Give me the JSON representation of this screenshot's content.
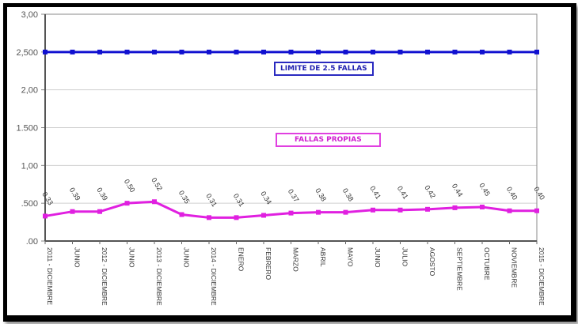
{
  "chart_data": {
    "type": "line",
    "title": "",
    "xlabel": "",
    "ylabel": "",
    "ylim": [
      0,
      3.0
    ],
    "y_ticks": [
      ".00",
      ".500",
      "1,00",
      "1.500",
      "2,00",
      "2,500",
      "3,00"
    ],
    "y_tick_values": [
      0,
      0.5,
      1.0,
      1.5,
      2.0,
      2.5,
      3.0
    ],
    "grid": true,
    "categories": [
      "2011 - DICIEMBRE",
      "JUNIO",
      "2012 - DICIEMBRE",
      "JUNIO",
      "2013 - DICIEMBRE",
      "JUNIO",
      "2014 - DICIEMBRE",
      "ENERO",
      "FEBRERO",
      "MARZO",
      "ABRIL",
      "MAYO",
      "JUNIO",
      "JULIO",
      "AGOSTO",
      "SEPTIEMBRE",
      "OCTUBRE",
      "NOVIEMBRE",
      "2015 - DICIEMBRE"
    ],
    "series": [
      {
        "name": "LIMITE DE 2.5 FALLAS",
        "color": "#1010d0",
        "values": [
          2.5,
          2.5,
          2.5,
          2.5,
          2.5,
          2.5,
          2.5,
          2.5,
          2.5,
          2.5,
          2.5,
          2.5,
          2.5,
          2.5,
          2.5,
          2.5,
          2.5,
          2.5,
          2.5
        ]
      },
      {
        "name": "FALLAS PROPIAS",
        "color": "#e020e0",
        "values": [
          0.33,
          0.39,
          0.39,
          0.5,
          0.52,
          0.35,
          0.31,
          0.31,
          0.34,
          0.37,
          0.38,
          0.38,
          0.41,
          0.41,
          0.42,
          0.44,
          0.45,
          0.4,
          0.4
        ],
        "data_labels": [
          "0.33",
          "0.39",
          "0.39",
          "0.50",
          "0.52",
          "0.35",
          "0.31",
          "0.31",
          "0.34",
          "0.37",
          "0.38",
          "0.38",
          "0.41",
          "0.41",
          "0.42",
          "0.44",
          "0.45",
          "0.40",
          "0.40"
        ]
      }
    ],
    "legend": [
      {
        "label": "LIMITE DE 2.5 FALLAS",
        "color": "#1a1ab8",
        "position": "above-line-center"
      },
      {
        "label": "FALLAS PROPIAS",
        "color": "#d020d0",
        "position": "center"
      }
    ]
  }
}
